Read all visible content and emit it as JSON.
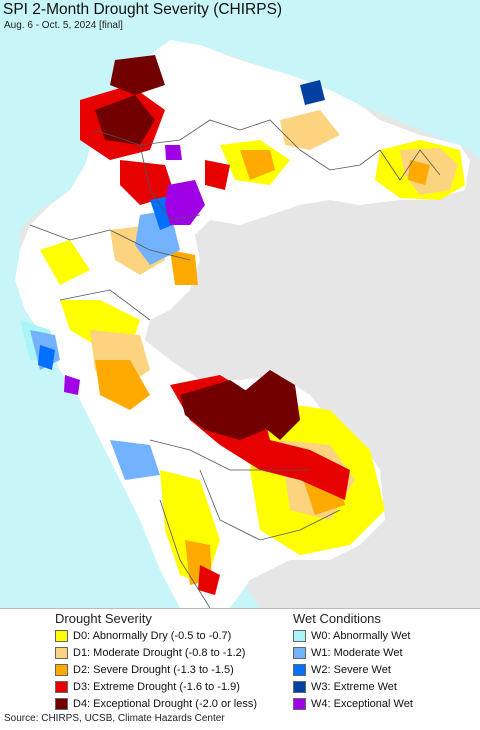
{
  "header": {
    "title": "SPI 2-Month Drought Severity (CHIRPS)",
    "subtitle": "Aug. 6 - Oct. 5, 2024 [final]"
  },
  "legend": {
    "drought": {
      "heading": "Drought Severity",
      "items": [
        {
          "label": "D0: Abnormally Dry (-0.5 to -0.7)",
          "color": "#ffff00"
        },
        {
          "label": "D1: Moderate Drought (-0.8 to -1.2)",
          "color": "#fcd37f"
        },
        {
          "label": "D2: Severe Drought (-1.3 to -1.5)",
          "color": "#ffaa00"
        },
        {
          "label": "D3: Extreme Drought (-1.6 to -1.9)",
          "color": "#e60000"
        },
        {
          "label": "D4: Exceptional Drought (-2.0 or less)",
          "color": "#730000"
        }
      ]
    },
    "wet": {
      "heading": "Wet Conditions",
      "items": [
        {
          "label": "W0: Abnormally Wet",
          "color": "#aaf5fa"
        },
        {
          "label": "W1: Moderate Wet",
          "color": "#73b2ff"
        },
        {
          "label": "W2: Severe Wet",
          "color": "#0070ff"
        },
        {
          "label": "W3: Extreme Wet",
          "color": "#0040a0"
        },
        {
          "label": "W4: Exceptional Wet",
          "color": "#a000e6"
        }
      ]
    }
  },
  "source": "Source: CHIRPS, UCSB, Climate Hazards Center",
  "colors": {
    "ocean": "#c8f6f8",
    "land_nodata": "#e6e6e6",
    "land_normal": "#ffffff",
    "border": "#555555"
  }
}
